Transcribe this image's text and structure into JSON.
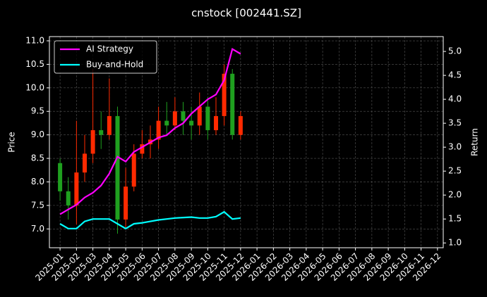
{
  "chart_data": {
    "type": "candlestick",
    "title": "cnstock [002441.SZ]",
    "ylabel": "Price",
    "y2label": "Return",
    "x": [
      0,
      0.5,
      1,
      1.5,
      2,
      2.5,
      3,
      3.5,
      4,
      4.5,
      5,
      5.5,
      6,
      6.5,
      7,
      7.5,
      8,
      8.5,
      9,
      9.5,
      10,
      10.5,
      11
    ],
    "xlim": [
      -0.65,
      23.35
    ],
    "xticks": [
      {
        "value": 0,
        "label": "2025-01"
      },
      {
        "value": 1,
        "label": "2025-02"
      },
      {
        "value": 2,
        "label": "2025-03"
      },
      {
        "value": 3,
        "label": "2025-04"
      },
      {
        "value": 4,
        "label": "2025-05"
      },
      {
        "value": 5,
        "label": "2025-06"
      },
      {
        "value": 6,
        "label": "2025-07"
      },
      {
        "value": 7,
        "label": "2025-08"
      },
      {
        "value": 8,
        "label": "2025-09"
      },
      {
        "value": 9,
        "label": "2025-10"
      },
      {
        "value": 10,
        "label": "2025-11"
      },
      {
        "value": 11,
        "label": "2025-12"
      },
      {
        "value": 12,
        "label": "2026-01"
      },
      {
        "value": 13,
        "label": "2026-02"
      },
      {
        "value": 14,
        "label": "2026-03"
      },
      {
        "value": 15,
        "label": "2026-04"
      },
      {
        "value": 16,
        "label": "2026-05"
      },
      {
        "value": 17,
        "label": "2026-06"
      },
      {
        "value": 18,
        "label": "2026-07"
      },
      {
        "value": 19,
        "label": "2026-08"
      },
      {
        "value": 20,
        "label": "2026-09"
      },
      {
        "value": 21,
        "label": "2026-10"
      },
      {
        "value": 22,
        "label": "2026-11"
      },
      {
        "value": 23,
        "label": "2026-12"
      }
    ],
    "ylim": [
      6.6,
      11.09
    ],
    "yticks": [
      {
        "value": 7.0,
        "label": "7.0"
      },
      {
        "value": 7.5,
        "label": "7.5"
      },
      {
        "value": 8.0,
        "label": "8.0"
      },
      {
        "value": 8.5,
        "label": "8.5"
      },
      {
        "value": 9.0,
        "label": "9.0"
      },
      {
        "value": 9.5,
        "label": "9.5"
      },
      {
        "value": 10.0,
        "label": "10.0"
      },
      {
        "value": 10.5,
        "label": "10.5"
      },
      {
        "value": 11.0,
        "label": "11.0"
      }
    ],
    "y2lim": [
      0.9,
      5.31
    ],
    "y2ticks": [
      {
        "value": 1.0,
        "label": "1.0"
      },
      {
        "value": 1.5,
        "label": "1.5"
      },
      {
        "value": 2.0,
        "label": "2.0"
      },
      {
        "value": 2.5,
        "label": "2.5"
      },
      {
        "value": 3.0,
        "label": "3.0"
      },
      {
        "value": 3.5,
        "label": "3.5"
      },
      {
        "value": 4.0,
        "label": "4.0"
      },
      {
        "value": 4.5,
        "label": "4.5"
      },
      {
        "value": 5.0,
        "label": "5.0"
      }
    ],
    "grid": true,
    "legend": "upper left",
    "up_color": "#ff2a00",
    "down_color": "#1fa01f",
    "candles": {
      "open": [
        8.4,
        7.8,
        7.5,
        8.2,
        8.6,
        9.1,
        9.0,
        9.4,
        7.2,
        7.9,
        8.6,
        8.8,
        8.9,
        9.3,
        9.2,
        9.5,
        9.3,
        9.2,
        9.6,
        9.1,
        9.4,
        10.3,
        9.0
      ],
      "close": [
        7.8,
        7.5,
        8.2,
        8.6,
        9.1,
        9.0,
        9.4,
        7.2,
        7.9,
        8.6,
        8.8,
        8.9,
        9.3,
        9.2,
        9.5,
        9.3,
        9.2,
        9.6,
        9.1,
        9.4,
        10.3,
        9.0,
        9.4
      ],
      "high": [
        8.5,
        8.1,
        9.3,
        9.0,
        10.4,
        9.5,
        10.2,
        9.6,
        8.3,
        8.8,
        9.1,
        9.2,
        9.6,
        9.7,
        9.8,
        9.7,
        9.6,
        9.9,
        9.8,
        9.8,
        10.5,
        10.4,
        9.5
      ],
      "low": [
        7.6,
        7.2,
        7.1,
        8.0,
        8.4,
        8.7,
        8.9,
        6.9,
        7.0,
        7.8,
        8.5,
        8.5,
        8.7,
        9.0,
        9.1,
        9.0,
        8.9,
        9.0,
        8.9,
        9.0,
        9.2,
        8.9,
        8.9
      ]
    },
    "series": [
      {
        "name": "AI Strategy",
        "color": "#ff00ff",
        "axis": "y2",
        "values": [
          1.6,
          1.7,
          1.8,
          1.95,
          2.05,
          2.2,
          2.45,
          2.8,
          2.7,
          2.9,
          3.0,
          3.1,
          3.2,
          3.25,
          3.4,
          3.5,
          3.7,
          3.85,
          4.0,
          4.1,
          4.4,
          5.05,
          4.95
        ]
      },
      {
        "name": "Buy-and-Hold",
        "color": "#00ffff",
        "axis": "y2",
        "values": [
          1.4,
          1.3,
          1.3,
          1.45,
          1.5,
          1.5,
          1.5,
          1.4,
          1.3,
          1.4,
          1.42,
          1.45,
          1.48,
          1.5,
          1.52,
          1.53,
          1.54,
          1.52,
          1.52,
          1.55,
          1.65,
          1.5,
          1.52
        ]
      }
    ]
  }
}
